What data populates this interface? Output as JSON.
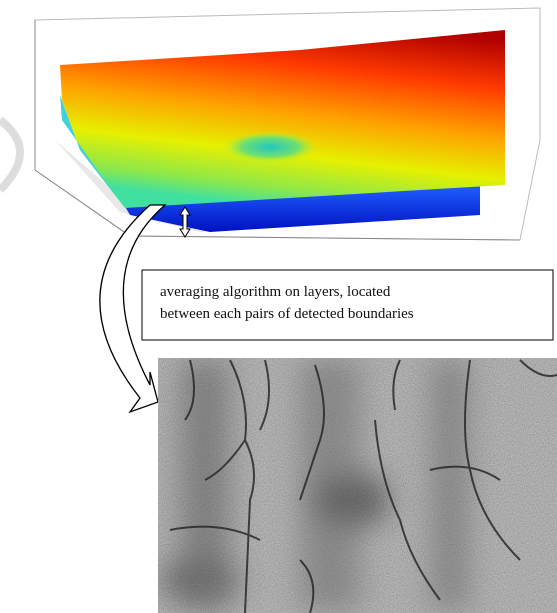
{
  "caption_box": {
    "lines": [
      "averaging algorithm on layers, located",
      "between each pairs of detected boundaries"
    ]
  }
}
